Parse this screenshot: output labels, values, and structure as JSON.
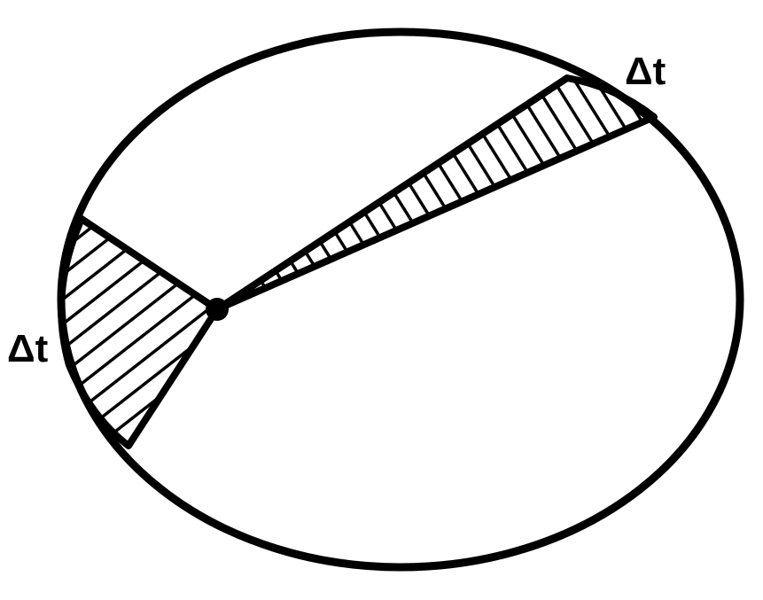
{
  "labels": {
    "aphelion_sector": "Δt",
    "perihelion_sector": "Δt"
  },
  "colors": {
    "stroke": "#000000",
    "background": "#ffffff"
  }
}
